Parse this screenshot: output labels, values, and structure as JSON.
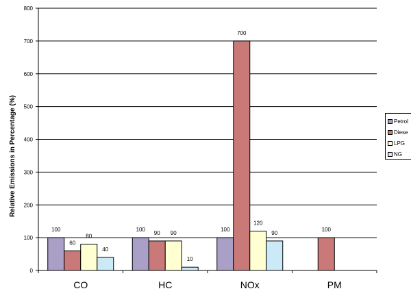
{
  "chart_data": {
    "type": "bar",
    "categories": [
      "CO",
      "HC",
      "NOx",
      "PM"
    ],
    "series": [
      {
        "name": "Petrol",
        "values": [
          100,
          100,
          100,
          null
        ],
        "color": "#a99fc7"
      },
      {
        "name": "Diesel",
        "values": [
          60,
          90,
          700,
          100
        ],
        "color": "#c97a78"
      },
      {
        "name": "LPG",
        "values": [
          80,
          90,
          120,
          null
        ],
        "color": "#ffffd2"
      },
      {
        "name": "NG",
        "values": [
          40,
          10,
          90,
          null
        ],
        "color": "#cbe9f6"
      }
    ],
    "data_labels": [
      [
        "100",
        "60",
        "80",
        "40"
      ],
      [
        "100",
        "90",
        "90",
        "10"
      ],
      [
        "100",
        "700",
        "120",
        "90"
      ],
      [
        "",
        "100",
        "",
        ""
      ]
    ],
    "ylabel": "Relative Emissions in Percentage (%)",
    "yticks": [
      "0",
      "100",
      "200",
      "300",
      "400",
      "500",
      "600",
      "700",
      "800"
    ],
    "ylim": [
      0,
      800
    ],
    "grid": true,
    "legend_position": "right",
    "legend_labels": [
      "Petrol",
      "Diese",
      "LPG",
      "NG"
    ]
  }
}
